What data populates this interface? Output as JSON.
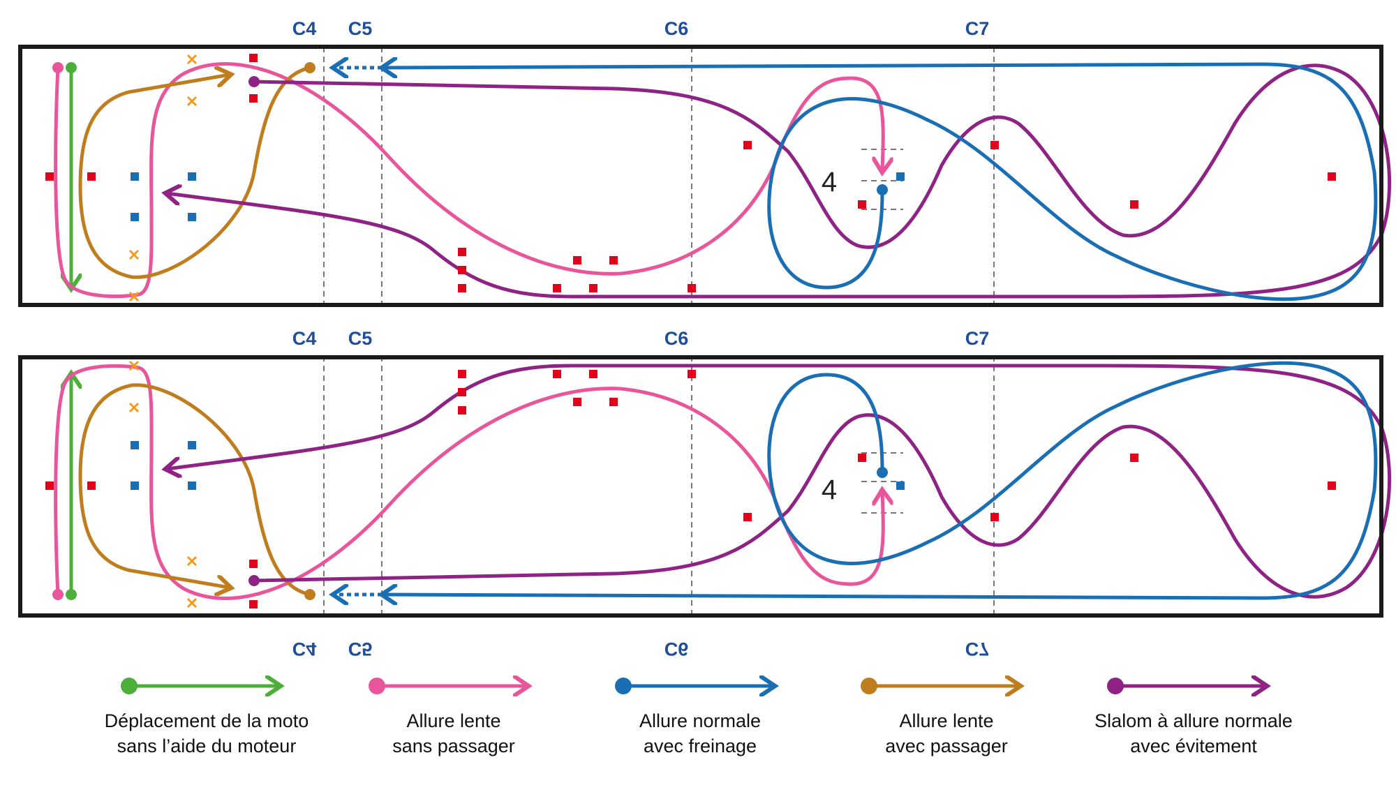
{
  "cones_top": [
    "C4",
    "C5",
    "C6",
    "C7"
  ],
  "cones_mirrored": [
    "C4",
    "C5",
    "C6",
    "C7"
  ],
  "station_number": "4",
  "colors": {
    "green": "#4caf3a",
    "pink": "#e8559a",
    "blue": "#1a6fb4",
    "ochre": "#c07d1e",
    "purple": "#8e2385",
    "red_marker": "#e2001a",
    "blue_marker": "#1a6fb4",
    "orange_cross": "#f39a1e",
    "border": "#1a1a1a",
    "guide": "#777777"
  },
  "legend": [
    {
      "key": "green",
      "line1": "Déplacement de la moto",
      "line2": "sans l’aide du moteur"
    },
    {
      "key": "pink",
      "line1": "Allure lente",
      "line2": "sans passager"
    },
    {
      "key": "blue",
      "line1": "Allure normale",
      "line2": "avec freinage"
    },
    {
      "key": "ochre",
      "line1": "Allure lente",
      "line2": "avec passager"
    },
    {
      "key": "purple",
      "line1": "Slalom à allure normale",
      "line2": "avec évitement"
    }
  ]
}
